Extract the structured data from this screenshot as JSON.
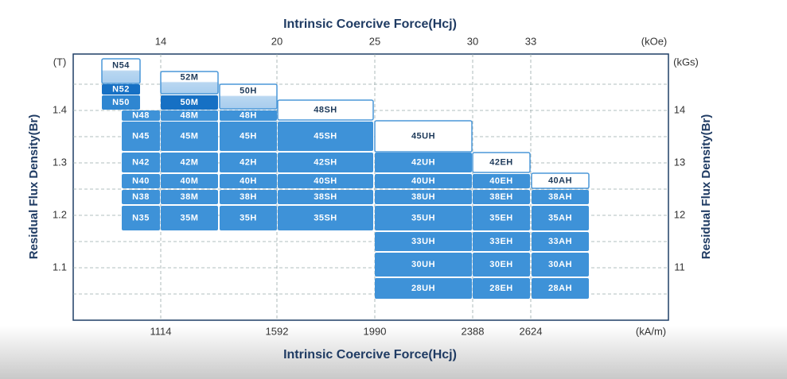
{
  "top_axis": {
    "title": "Intrinsic Coercive Force(Hcj)",
    "ticks": [
      "14",
      "20",
      "25",
      "30",
      "33"
    ],
    "unit": "(kOe)"
  },
  "bottom_axis": {
    "title": "Intrinsic Coercive Force(Hcj)",
    "ticks": [
      "1114",
      "1592",
      "1990",
      "2388",
      "2624"
    ],
    "unit": "(kA/m)"
  },
  "left_axis": {
    "title": "Residual Flux Density(Br)",
    "unit": "(T)",
    "ticks": [
      "1.4",
      "1.3",
      "1.2",
      "1.1"
    ]
  },
  "right_axis": {
    "title": "Residual Flux Density(Br)",
    "unit": "(kGs)",
    "ticks": [
      "14",
      "13",
      "12",
      "11"
    ]
  },
  "grades": [
    "N54",
    "N52",
    "N50",
    "N48",
    "N45",
    "N42",
    "N40",
    "N38",
    "N35",
    "52M",
    "50M",
    "48M",
    "45M",
    "42M",
    "40M",
    "38M",
    "35M",
    "50H",
    "48H",
    "45H",
    "42H",
    "40H",
    "38H",
    "35H",
    "48SH",
    "45SH",
    "42SH",
    "40SH",
    "38SH",
    "35SH",
    "45UH",
    "42UH",
    "40UH",
    "38UH",
    "35UH",
    "33UH",
    "30UH",
    "28UH",
    "42EH",
    "40EH",
    "38EH",
    "35EH",
    "33EH",
    "30EH",
    "28EH",
    "40AH",
    "38AH",
    "35AH",
    "33AH",
    "30AH",
    "28AH"
  ]
}
